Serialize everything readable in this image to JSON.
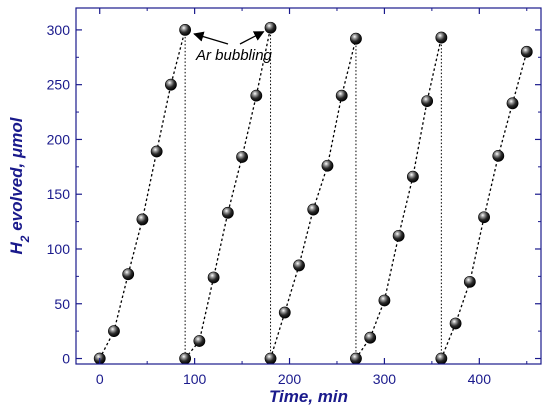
{
  "chart_data": {
    "type": "scatter",
    "xlabel": "Time, min",
    "ylabel": "H2 evolved, μmol",
    "ylabel_main": "H",
    "ylabel_sub": "2",
    "ylabel_rest": " evolved, μmol",
    "xlim": [
      -25,
      465
    ],
    "ylim": [
      -5,
      320
    ],
    "x_ticks": [
      0,
      100,
      200,
      300,
      400
    ],
    "x_tick_labels": [
      "0",
      "100",
      "200",
      "300",
      "400"
    ],
    "y_ticks": [
      0,
      50,
      100,
      150,
      200,
      250,
      300
    ],
    "y_tick_labels": [
      "0",
      "50",
      "100",
      "150",
      "200",
      "250",
      "300"
    ],
    "grid": false,
    "line_style": "dotted",
    "marker": "sphere",
    "colors": {
      "axis": "#1a1a8c",
      "marker": "#111111",
      "line": "#000000"
    },
    "cycles": [
      {
        "x": [
          0,
          15,
          30,
          45,
          60,
          75,
          90
        ],
        "y": [
          0,
          25,
          77,
          127,
          189,
          250,
          300
        ]
      },
      {
        "x": [
          90,
          105,
          120,
          135,
          150,
          165,
          180
        ],
        "y": [
          0,
          16,
          74,
          133,
          184,
          240,
          302
        ]
      },
      {
        "x": [
          180,
          195,
          210,
          225,
          240,
          255,
          270
        ],
        "y": [
          0,
          42,
          85,
          136,
          176,
          240,
          292
        ]
      },
      {
        "x": [
          270,
          285,
          300,
          315,
          330,
          345,
          360
        ],
        "y": [
          0,
          19,
          53,
          112,
          166,
          235,
          293
        ]
      },
      {
        "x": [
          360,
          375,
          390,
          405,
          420,
          435,
          450
        ],
        "y": [
          0,
          32,
          70,
          129,
          185,
          233,
          280
        ]
      }
    ],
    "annotations": [
      {
        "text": "Ar bubbling",
        "points_to": [
          [
            90,
            300
          ],
          [
            180,
            302
          ]
        ]
      }
    ]
  }
}
